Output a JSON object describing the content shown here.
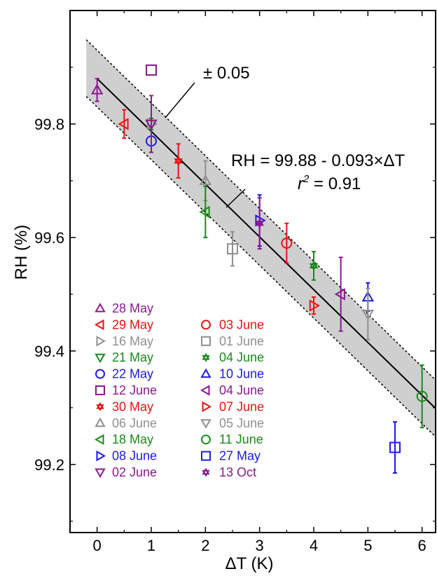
{
  "chart_data": {
    "type": "scatter",
    "xlabel": "ΔT (K)",
    "ylabel": "RH (%)",
    "xlim": [
      -0.5,
      6.25
    ],
    "ylim": [
      99.08,
      100.0
    ],
    "x_ticks": [
      0,
      1,
      2,
      3,
      4,
      5,
      6
    ],
    "y_ticks": [
      99.2,
      99.4,
      99.6,
      99.8
    ],
    "grid": false,
    "legend_position": "bottom-left",
    "fit": {
      "intercept": 99.88,
      "slope": -0.093,
      "band": 0.05
    },
    "annotations": {
      "band_label": "± 0.05",
      "fit_equation": "RH = 99.88 - 0.093×ΔT",
      "r2_prefix": "r",
      "r2_exp": "2",
      "r2_rest": " = 0.91"
    },
    "series": [
      {
        "name": "28 May",
        "color": "#8a1a8e",
        "marker": "triangle-up",
        "x": 0,
        "y": 99.86,
        "err": 0.02
      },
      {
        "name": "29 May",
        "color": "#ee1111",
        "marker": "triangle-left",
        "x": 0.5,
        "y": 99.8,
        "err": 0.025
      },
      {
        "name": "16 May",
        "color": "#909090",
        "marker": "triangle-right",
        "x": 1,
        "y": 99.8,
        "err": 0.01
      },
      {
        "name": "21 May",
        "color": "#1a8a1a",
        "marker": "triangle-down",
        "x": 1,
        "y": 99.8,
        "err": 0.01
      },
      {
        "name": "22 May",
        "color": "#1a1aee",
        "marker": "circle",
        "x": 1,
        "y": 99.77,
        "err": 0.0
      },
      {
        "name": "12 June",
        "color": "#8a1a8e",
        "marker": "square",
        "x": 1,
        "y": 99.895,
        "err": 0.0
      },
      {
        "name": "30 May",
        "color": "#ee1111",
        "marker": "star",
        "x": 1.5,
        "y": 99.735,
        "err": 0.03
      },
      {
        "name": "06 June",
        "color": "#909090",
        "marker": "triangle-up",
        "x": 2,
        "y": 99.7,
        "err": 0.035
      },
      {
        "name": "18 May",
        "color": "#1a8a1a",
        "marker": "triangle-left",
        "x": 2,
        "y": 99.645,
        "err": 0.045
      },
      {
        "name": "08 June",
        "color": "#1a1aee",
        "marker": "triangle-right",
        "x": 3,
        "y": 99.63,
        "err": 0.045
      },
      {
        "name": "02 June",
        "color": "#8a1a8e",
        "marker": "triangle-down",
        "x": 1,
        "y": 99.8,
        "err": 0.05
      },
      {
        "name": "03 June",
        "color": "#ee1111",
        "marker": "circle",
        "x": 3.5,
        "y": 99.59,
        "err": 0.035
      },
      {
        "name": "01 June",
        "color": "#909090",
        "marker": "square",
        "x": 2.5,
        "y": 99.58,
        "err": 0.03
      },
      {
        "name": "04 June",
        "color": "#1a8a1a",
        "marker": "star",
        "x": 4,
        "y": 99.55,
        "err": 0.025
      },
      {
        "name": "10 June",
        "color": "#1a1aee",
        "marker": "triangle-up",
        "x": 5,
        "y": 99.495,
        "err": 0.025
      },
      {
        "name": "04 June",
        "color": "#8a1a8e",
        "marker": "triangle-left",
        "x": 4.5,
        "y": 99.5,
        "err": 0.065
      },
      {
        "name": "07 June",
        "color": "#ee1111",
        "marker": "triangle-right",
        "x": 4,
        "y": 99.48,
        "err": 0.015
      },
      {
        "name": "05 June",
        "color": "#909090",
        "marker": "triangle-down",
        "x": 5,
        "y": 99.465,
        "err": 0.045
      },
      {
        "name": "11 June",
        "color": "#1a8a1a",
        "marker": "circle",
        "x": 6,
        "y": 99.32,
        "err": 0.055
      },
      {
        "name": "27 May",
        "color": "#1a1aee",
        "marker": "square",
        "x": 5.5,
        "y": 99.23,
        "err": 0.045
      },
      {
        "name": "13 Oct",
        "color": "#8a1a8e",
        "marker": "star",
        "x": 3,
        "y": 99.625,
        "err": 0.045
      }
    ]
  }
}
